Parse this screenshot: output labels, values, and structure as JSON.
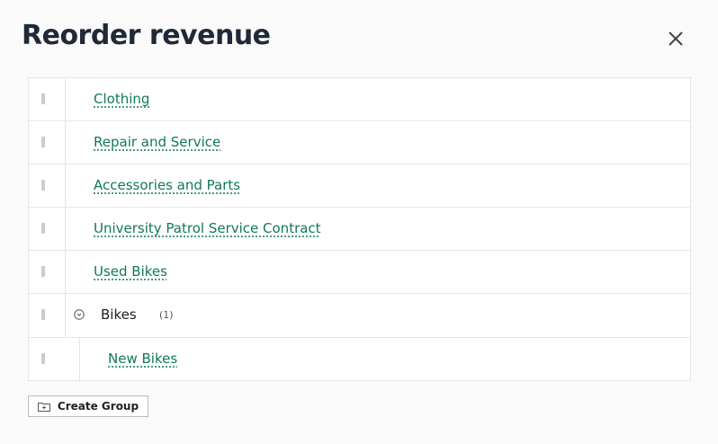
{
  "dialog": {
    "title": "Reorder revenue",
    "close_icon": "close-icon"
  },
  "items": [
    {
      "label": "Clothing"
    },
    {
      "label": "Repair and Service"
    },
    {
      "label": "Accessories and Parts"
    },
    {
      "label": "University Patrol Service Contract"
    },
    {
      "label": "Used Bikes"
    }
  ],
  "group": {
    "label": "Bikes",
    "count": "(1)",
    "children": [
      {
        "label": "New Bikes"
      }
    ]
  },
  "create_group": {
    "label": "Create Group",
    "icon": "folder-plus-icon"
  },
  "colors": {
    "link": "#0f7a55",
    "title": "#1f2937"
  }
}
